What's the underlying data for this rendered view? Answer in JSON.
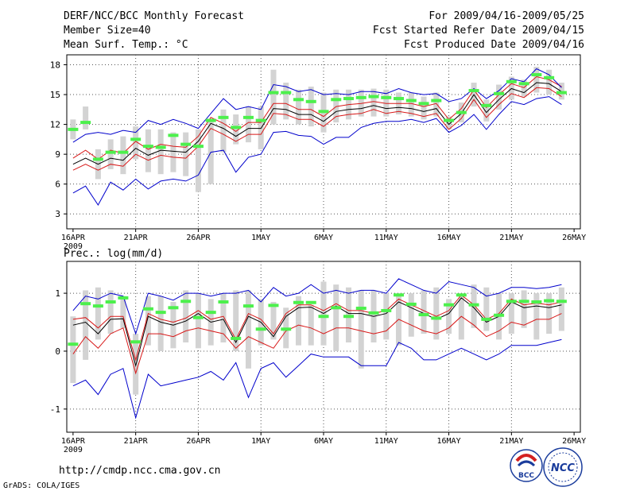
{
  "header": {
    "title": "DERF/NCC/BCC Monthly Forecast",
    "member_size": "Member Size=40",
    "variable": "Mean Surf. Temp.: °C",
    "period": "For 2009/04/16-2009/05/25",
    "refer_date": "Fcst Started Refer Date 2009/04/15",
    "produced_date": "Fcst Produced Date 2009/04/16"
  },
  "footer": {
    "url": "http://cmdp.ncc.cma.gov.cn",
    "credit": "GrADS: COLA/IGES",
    "logo_bcc": "BCC",
    "logo_ncc": "NCC"
  },
  "colors": {
    "box": "#d3d3d3",
    "member": "#4cf04c",
    "mean": "#000000",
    "spread": "#d81818",
    "extreme": "#0000cc",
    "grid": "#555555"
  },
  "chart_data": [
    {
      "type": "line",
      "title": "Mean Surf. Temp.: °C",
      "x_tick_labels": [
        "16APR",
        "21APR",
        "26APR",
        "1MAY",
        "6MAY",
        "11MAY",
        "16MAY",
        "21MAY",
        "26MAY"
      ],
      "x_tick_days": [
        0,
        5,
        10,
        15,
        20,
        25,
        30,
        35,
        40
      ],
      "year_label": "2009",
      "xlim": [
        -0.5,
        40.5
      ],
      "ylim": [
        1.5,
        19
      ],
      "y_ticks": [
        3,
        6,
        9,
        12,
        15,
        18
      ],
      "y_tick_labels": [
        "3",
        "6",
        "9",
        "12",
        "15",
        "18"
      ],
      "box_low": [
        10.5,
        11.5,
        6.5,
        7.5,
        7.0,
        8.5,
        7.2,
        7.0,
        7.2,
        6.8,
        5.2,
        6.0,
        9.2,
        10.0,
        10.2,
        9.5,
        12.0,
        12.5,
        12.0,
        11.8,
        11.2,
        12.2,
        12.5,
        12.8,
        12.8,
        12.8,
        13.0,
        12.8,
        12.5,
        12.8,
        11.5,
        12.2,
        13.8,
        12.3,
        13.5,
        14.5,
        14.8,
        15.2,
        15.0,
        14.5
      ],
      "box_high": [
        12.5,
        13.8,
        9.5,
        10.5,
        10.8,
        11.8,
        11.5,
        11.5,
        11.2,
        11.2,
        11.5,
        12.5,
        13.5,
        13.0,
        13.8,
        13.8,
        17.5,
        16.2,
        15.5,
        15.8,
        15.2,
        15.5,
        15.5,
        15.5,
        15.6,
        15.5,
        15.2,
        15.2,
        14.8,
        15.2,
        12.8,
        14.2,
        16.2,
        14.5,
        16.0,
        16.8,
        16.5,
        17.8,
        17.5,
        16.2
      ],
      "series": [
        {
          "name": "ensemble member",
          "values": [
            11.5,
            12.2,
            8.5,
            9.2,
            9.2,
            10.5,
            9.8,
            9.7,
            10.9,
            10.0,
            9.8,
            12.4,
            12.7,
            11.7,
            12.7,
            12.4,
            15.2,
            15.2,
            14.5,
            14.3,
            13.3,
            14.5,
            14.6,
            14.7,
            14.8,
            14.7,
            14.6,
            14.4,
            14.1,
            14.4,
            12.4,
            13.2,
            15.4,
            13.9,
            15.1,
            16.3,
            16.1,
            17.0,
            16.7,
            15.2
          ],
          "style": "dash"
        },
        {
          "name": "mean",
          "values": [
            8.0,
            8.6,
            8.0,
            8.6,
            8.4,
            9.6,
            8.9,
            9.4,
            9.3,
            9.2,
            10.3,
            12.1,
            11.6,
            10.8,
            11.6,
            11.6,
            13.6,
            13.5,
            13.0,
            13.0,
            12.3,
            13.3,
            13.5,
            13.6,
            13.9,
            13.6,
            13.7,
            13.6,
            13.3,
            13.6,
            12.0,
            13.1,
            15.0,
            13.2,
            14.5,
            15.6,
            15.2,
            16.2,
            16.1,
            15.3
          ]
        },
        {
          "name": "mean + spread",
          "values": [
            8.6,
            9.4,
            8.5,
            9.4,
            9.1,
            10.3,
            9.5,
            10.0,
            9.8,
            9.7,
            10.8,
            12.7,
            12.1,
            11.3,
            12.2,
            12.2,
            14.1,
            14.1,
            13.5,
            13.5,
            12.8,
            13.8,
            14.0,
            14.1,
            14.3,
            14.1,
            14.1,
            14.1,
            13.8,
            14.1,
            12.5,
            13.6,
            15.5,
            13.7,
            15.0,
            16.1,
            15.7,
            16.8,
            16.5,
            15.8
          ]
        },
        {
          "name": "mean - spread",
          "values": [
            7.4,
            8.0,
            7.4,
            8.0,
            7.8,
            9.0,
            8.4,
            8.9,
            8.7,
            8.6,
            9.8,
            11.6,
            11.0,
            10.3,
            11.0,
            11.0,
            13.1,
            13.0,
            12.5,
            12.5,
            11.8,
            12.8,
            13.0,
            13.1,
            13.5,
            13.1,
            13.3,
            13.1,
            12.8,
            13.1,
            11.5,
            12.6,
            14.5,
            12.7,
            14.0,
            15.1,
            14.7,
            15.7,
            15.6,
            14.8
          ]
        },
        {
          "name": "ensemble max",
          "values": [
            10.2,
            11.0,
            11.2,
            11.0,
            11.4,
            11.2,
            12.4,
            12.0,
            12.5,
            12.1,
            11.6,
            13.1,
            14.6,
            13.5,
            13.8,
            13.5,
            16.0,
            15.8,
            15.3,
            15.5,
            15.0,
            15.1,
            15.0,
            15.3,
            15.3,
            15.1,
            15.6,
            15.2,
            15.0,
            15.1,
            14.3,
            14.6,
            15.6,
            14.6,
            15.4,
            16.6,
            16.3,
            17.6,
            17.0,
            15.7
          ]
        },
        {
          "name": "ensemble min",
          "values": [
            5.1,
            5.8,
            3.9,
            6.2,
            5.4,
            6.5,
            5.5,
            6.3,
            6.5,
            6.3,
            6.9,
            9.2,
            9.4,
            7.2,
            8.7,
            9.0,
            11.2,
            11.3,
            10.9,
            10.8,
            10.0,
            10.7,
            10.7,
            11.7,
            12.1,
            12.3,
            12.3,
            12.5,
            12.2,
            12.6,
            11.2,
            11.9,
            13.0,
            11.5,
            13.0,
            14.3,
            14.0,
            14.6,
            14.8,
            14.0
          ]
        }
      ]
    },
    {
      "type": "line",
      "title": "Prec.: log(mm/d)",
      "x_tick_labels": [
        "16APR",
        "21APR",
        "26APR",
        "1MAY",
        "6MAY",
        "11MAY",
        "16MAY",
        "21MAY",
        "26MAY"
      ],
      "x_tick_days": [
        0,
        5,
        10,
        15,
        20,
        25,
        30,
        35,
        40
      ],
      "year_label": "2009",
      "xlim": [
        -0.5,
        40.5
      ],
      "ylim": [
        -1.4,
        1.55
      ],
      "y_ticks": [
        -1,
        0,
        1
      ],
      "y_tick_labels": [
        "-1",
        "0",
        "1"
      ],
      "box_low": [
        -0.55,
        -0.15,
        0.2,
        0.3,
        0.4,
        -0.75,
        0.1,
        0.0,
        0.05,
        0.15,
        0.05,
        0.1,
        0.15,
        0.0,
        -0.3,
        0.1,
        0.2,
        0.05,
        0.1,
        0.1,
        0.1,
        0.0,
        0.15,
        -0.3,
        0.15,
        0.2,
        0.1,
        0.25,
        0.3,
        0.2,
        0.3,
        0.2,
        0.4,
        0.35,
        0.2,
        0.3,
        0.4,
        0.2,
        0.3,
        0.35
      ],
      "box_high": [
        0.6,
        1.05,
        1.1,
        1.05,
        0.95,
        0.3,
        0.95,
        0.95,
        0.85,
        1.05,
        1.0,
        0.9,
        1.0,
        1.05,
        1.05,
        0.9,
        0.85,
        0.75,
        0.95,
        0.8,
        1.2,
        1.15,
        1.1,
        1.05,
        1.05,
        1.0,
        0.95,
        1.0,
        1.05,
        1.1,
        0.9,
        0.95,
        1.15,
        1.1,
        1.0,
        1.0,
        1.05,
        1.0,
        1.0,
        1.1
      ],
      "series": [
        {
          "name": "ensemble member",
          "values": [
            0.12,
            0.82,
            0.78,
            0.85,
            0.92,
            0.16,
            0.73,
            0.67,
            0.75,
            0.86,
            0.58,
            0.67,
            0.85,
            0.22,
            0.78,
            0.38,
            0.79,
            0.38,
            0.84,
            0.84,
            0.6,
            0.75,
            0.6,
            0.74,
            0.66,
            0.7,
            0.97,
            0.81,
            0.63,
            0.57,
            0.8,
            0.97,
            0.8,
            0.55,
            0.62,
            0.86,
            0.86,
            0.85,
            0.87,
            0.86
          ],
          "style": "dash"
        },
        {
          "name": "mean",
          "values": [
            0.45,
            0.5,
            0.3,
            0.55,
            0.56,
            -0.25,
            0.6,
            0.5,
            0.45,
            0.52,
            0.65,
            0.5,
            0.55,
            0.15,
            0.6,
            0.5,
            0.25,
            0.6,
            0.75,
            0.76,
            0.65,
            0.78,
            0.65,
            0.65,
            0.6,
            0.65,
            0.85,
            0.75,
            0.65,
            0.55,
            0.65,
            0.92,
            0.75,
            0.5,
            0.6,
            0.85,
            0.75,
            0.78,
            0.75,
            0.8
          ]
        },
        {
          "name": "mean + spread",
          "values": [
            0.55,
            0.58,
            0.4,
            0.6,
            0.6,
            -0.15,
            0.65,
            0.55,
            0.5,
            0.57,
            0.7,
            0.55,
            0.6,
            0.2,
            0.65,
            0.55,
            0.3,
            0.65,
            0.8,
            0.8,
            0.7,
            0.82,
            0.7,
            0.7,
            0.65,
            0.7,
            0.9,
            0.8,
            0.7,
            0.6,
            0.7,
            0.97,
            0.8,
            0.55,
            0.65,
            0.9,
            0.8,
            0.83,
            0.8,
            0.85
          ]
        },
        {
          "name": "mean - spread",
          "values": [
            -0.05,
            0.25,
            0.05,
            0.3,
            0.4,
            -0.38,
            0.3,
            0.3,
            0.25,
            0.35,
            0.4,
            0.35,
            0.3,
            0.05,
            0.25,
            0.15,
            0.05,
            0.35,
            0.45,
            0.4,
            0.3,
            0.4,
            0.4,
            0.35,
            0.3,
            0.35,
            0.55,
            0.45,
            0.35,
            0.3,
            0.4,
            0.6,
            0.45,
            0.25,
            0.35,
            0.5,
            0.45,
            0.55,
            0.55,
            0.65
          ]
        },
        {
          "name": "ensemble max",
          "values": [
            0.7,
            0.95,
            0.9,
            1.0,
            0.95,
            0.3,
            1.0,
            0.95,
            0.88,
            1.0,
            1.0,
            0.95,
            1.0,
            1.0,
            1.05,
            0.85,
            1.1,
            0.95,
            1.0,
            1.15,
            1.0,
            1.05,
            1.0,
            1.05,
            1.05,
            1.0,
            1.25,
            1.15,
            1.05,
            1.0,
            1.2,
            1.15,
            1.1,
            0.95,
            1.0,
            1.1,
            1.1,
            1.08,
            1.1,
            1.15
          ]
        },
        {
          "name": "ensemble min",
          "values": [
            -0.6,
            -0.5,
            -0.75,
            -0.4,
            -0.3,
            -1.15,
            -0.4,
            -0.6,
            -0.55,
            -0.5,
            -0.45,
            -0.35,
            -0.5,
            -0.2,
            -0.8,
            -0.3,
            -0.2,
            -0.45,
            -0.25,
            -0.05,
            -0.1,
            -0.1,
            -0.1,
            -0.25,
            -0.25,
            -0.25,
            0.15,
            0.05,
            -0.15,
            -0.15,
            -0.05,
            0.05,
            -0.05,
            -0.15,
            -0.05,
            0.1,
            0.1,
            0.1,
            0.15,
            0.2
          ]
        }
      ]
    }
  ]
}
